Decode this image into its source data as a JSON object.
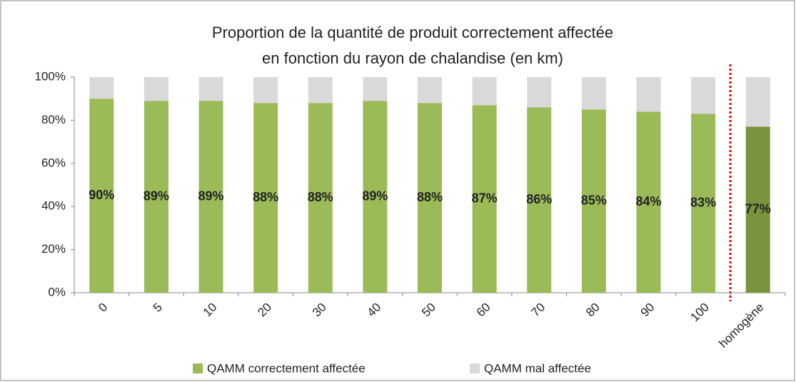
{
  "chart_data": {
    "type": "stacked_bar",
    "title": [
      "Proportion de la quantité de produit correctement affectée",
      "en fonction du rayon de chalandise (en km)"
    ],
    "categories": [
      "0",
      "5",
      "10",
      "20",
      "30",
      "40",
      "50",
      "60",
      "70",
      "80",
      "90",
      "100",
      "homogène"
    ],
    "series": [
      {
        "name": "QAMM correctement affectée",
        "color": "#9bbb59",
        "colors": [
          "#9bbb59",
          "#9bbb59",
          "#9bbb59",
          "#9bbb59",
          "#9bbb59",
          "#9bbb59",
          "#9bbb59",
          "#9bbb59",
          "#9bbb59",
          "#9bbb59",
          "#9bbb59",
          "#9bbb59",
          "#77933c"
        ],
        "values": [
          90,
          89,
          89,
          88,
          88,
          89,
          88,
          87,
          86,
          85,
          84,
          83,
          77
        ],
        "value_labels": [
          "90%",
          "89%",
          "89%",
          "88%",
          "88%",
          "89%",
          "88%",
          "87%",
          "86%",
          "85%",
          "84%",
          "83%",
          "77%"
        ]
      },
      {
        "name": "QAMM mal affectée",
        "color": "#d9d9d9",
        "values": [
          10,
          11,
          11,
          12,
          12,
          11,
          12,
          13,
          14,
          15,
          16,
          17,
          23
        ]
      }
    ],
    "ylim": [
      0,
      100
    ],
    "yticks": [
      {
        "value": 0,
        "label": "0%"
      },
      {
        "value": 20,
        "label": "20%"
      },
      {
        "value": 40,
        "label": "40%"
      },
      {
        "value": 60,
        "label": "60%"
      },
      {
        "value": 80,
        "label": "80%"
      },
      {
        "value": 100,
        "label": "100%"
      }
    ],
    "grid": false,
    "legend": "bottom"
  }
}
